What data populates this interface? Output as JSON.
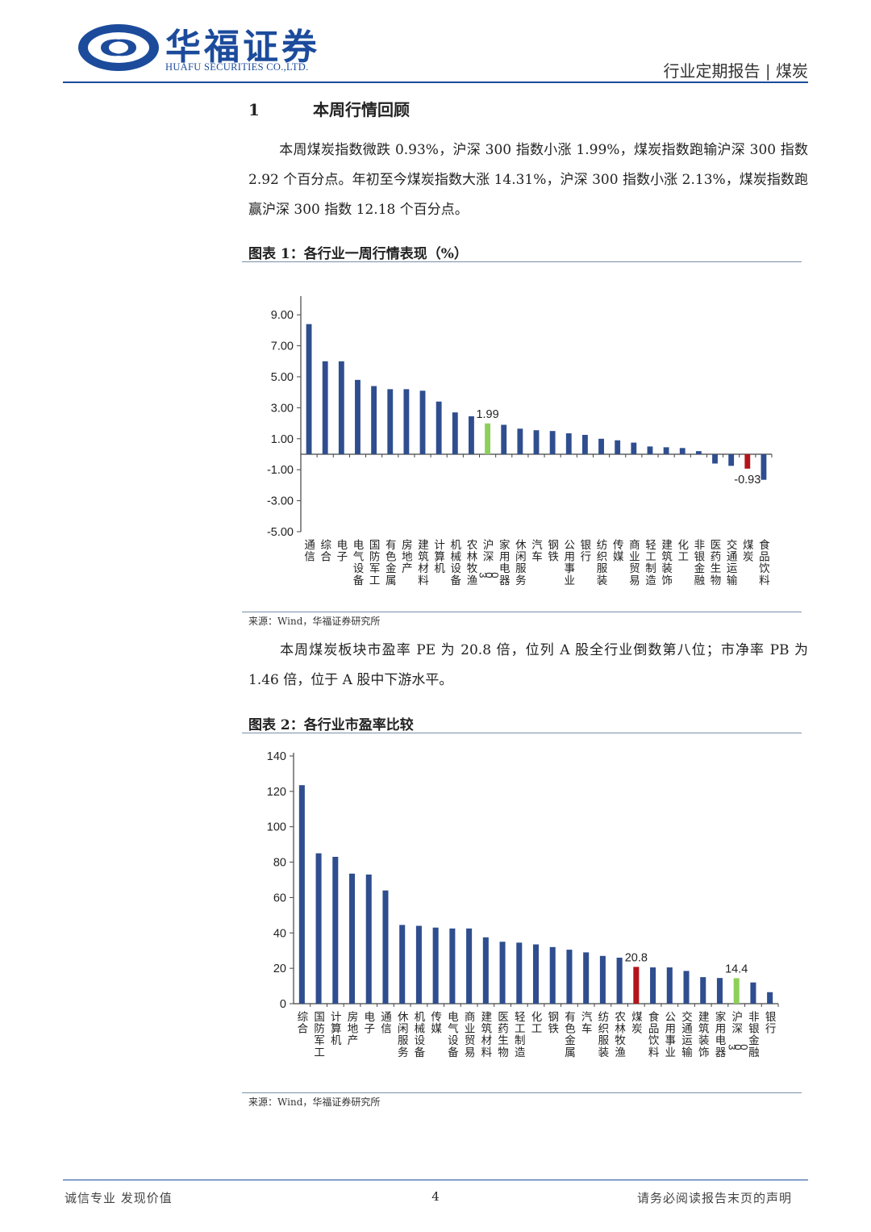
{
  "header": {
    "brand_cn": "华福证券",
    "brand_en": "HUAFU SECURITIES CO.,LTD.",
    "report_type": "行业定期报告 | 煤炭",
    "brand_color": "#1c4b9c"
  },
  "section": {
    "number": "1",
    "title": "本周行情回顾"
  },
  "paragraphs": {
    "p1": "本周煤炭指数微跌 0.93%，沪深 300 指数小涨 1.99%，煤炭指数跑输沪深 300 指数 2.92 个百分点。年初至今煤炭指数大涨 14.31%，沪深 300 指数小涨 2.13%，煤炭指数跑赢沪深 300 指数 12.18 个百分点。",
    "p2": "本周煤炭板块市盈率 PE 为 20.8 倍，位列 A 股全行业倒数第八位；市净率 PB 为 1.46 倍，位于 A 股中下游水平。"
  },
  "figures": {
    "fig1": {
      "title": "图表 1：各行业一周行情表现（%）",
      "source": "来源：Wind，华福证券研究所"
    },
    "fig2": {
      "title": "图表 2：各行业市盈率比较",
      "source": "来源：Wind，华福证券研究所"
    }
  },
  "chart_data": [
    {
      "type": "bar",
      "categories": [
        "通信",
        "综合",
        "电子",
        "电气设备",
        "国防军工",
        "有色金属",
        "房地产",
        "建筑材料",
        "计算机",
        "机械设备",
        "农林牧渔",
        "沪深300",
        "家用电器",
        "休闲服务",
        "汽车",
        "钢铁",
        "公用事业",
        "银行",
        "纺织服装",
        "传媒",
        "商业贸易",
        "轻工制造",
        "建筑装饰",
        "化工",
        "非银金融",
        "医药生物",
        "交通运输",
        "煤炭",
        "食品饮料"
      ],
      "values": [
        8.4,
        6.0,
        6.0,
        4.8,
        4.4,
        4.2,
        4.2,
        4.1,
        3.4,
        2.7,
        2.45,
        1.99,
        1.9,
        1.65,
        1.55,
        1.5,
        1.35,
        1.25,
        1.0,
        0.9,
        0.75,
        0.5,
        0.45,
        0.4,
        0.2,
        -0.6,
        -0.75,
        -0.93,
        -1.65
      ],
      "ylim": [
        -5,
        10
      ],
      "yticks": [
        "9.00",
        "7.00",
        "5.00",
        "3.00",
        "1.00",
        "-1.00",
        "-3.00",
        "-5.00"
      ],
      "data_labels": {
        "沪深300": "1.99",
        "煤炭": "-0.93"
      },
      "colors": {
        "default": "#2f4e8f",
        "沪深300": "#8ccf5a",
        "煤炭": "#b3141b"
      },
      "grid": false
    },
    {
      "type": "bar",
      "categories": [
        "综合",
        "国防军工",
        "计算机",
        "房地产",
        "电子",
        "通信",
        "休闲服务",
        "机械设备",
        "传媒",
        "电气设备",
        "商业贸易",
        "建筑材料",
        "医药生物",
        "轻工制造",
        "化工",
        "钢铁",
        "有色金属",
        "汽车",
        "纺织服装",
        "农林牧渔",
        "煤炭",
        "食品饮料",
        "公用事业",
        "交通运输",
        "建筑装饰",
        "家用电器",
        "沪深300",
        "非银金融",
        "银行"
      ],
      "values": [
        123.5,
        85,
        83,
        73.5,
        73,
        64,
        44.5,
        44,
        43,
        42.5,
        42.5,
        37.5,
        35,
        34.5,
        33.5,
        32,
        30.5,
        29,
        27,
        26,
        20.8,
        20.5,
        20.5,
        18.5,
        15,
        14.5,
        14.4,
        12,
        6.5
      ],
      "ylim": [
        0,
        140
      ],
      "yticks": [
        "140",
        "120",
        "100",
        "80",
        "60",
        "40",
        "20",
        "0"
      ],
      "data_labels": {
        "煤炭": "20.8",
        "沪深300": "14.4"
      },
      "colors": {
        "default": "#2f4e8f",
        "沪深300": "#8ccf5a",
        "煤炭": "#b3141b"
      },
      "grid": false
    }
  ],
  "footer": {
    "left": "诚信专业 发现价值",
    "page": "4",
    "right": "请务必阅读报告末页的声明"
  }
}
